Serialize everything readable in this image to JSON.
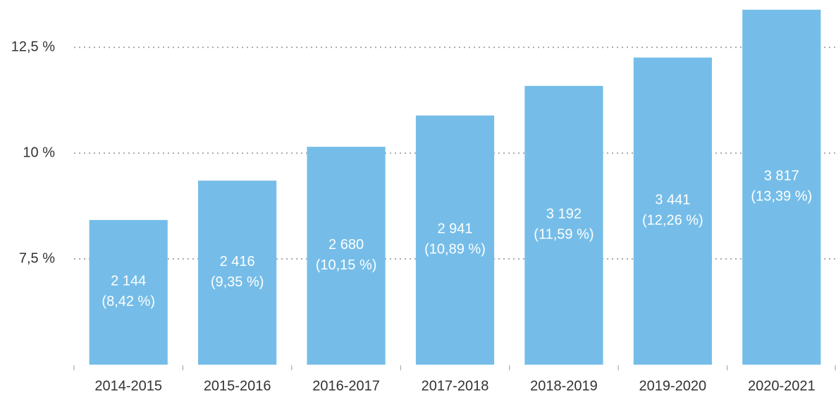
{
  "chart_data": {
    "type": "bar",
    "categories": [
      "2014-2015",
      "2015-2016",
      "2016-2017",
      "2017-2018",
      "2018-2019",
      "2019-2020",
      "2020-2021"
    ],
    "values": [
      8.42,
      9.35,
      10.15,
      10.89,
      11.59,
      12.26,
      13.39
    ],
    "value_labels": [
      "(8,42 %)",
      "(9,35 %)",
      "(10,15 %)",
      "(10,89 %)",
      "(11,59 %)",
      "(12,26 %)",
      "(13,39 %)"
    ],
    "counts": [
      2144,
      2416,
      2680,
      2941,
      3192,
      3441,
      3817
    ],
    "count_labels": [
      "2 144",
      "2 416",
      "2 680",
      "2 941",
      "3 192",
      "3 441",
      "3 817"
    ],
    "color": "#75bde8",
    "ylim": [
      5,
      13.62
    ],
    "yticks": [
      {
        "value": 7.5,
        "label": "7,5 %"
      },
      {
        "value": 10,
        "label": "10 %"
      },
      {
        "value": 12.5,
        "label": "12,5 %"
      }
    ],
    "grid": true
  }
}
